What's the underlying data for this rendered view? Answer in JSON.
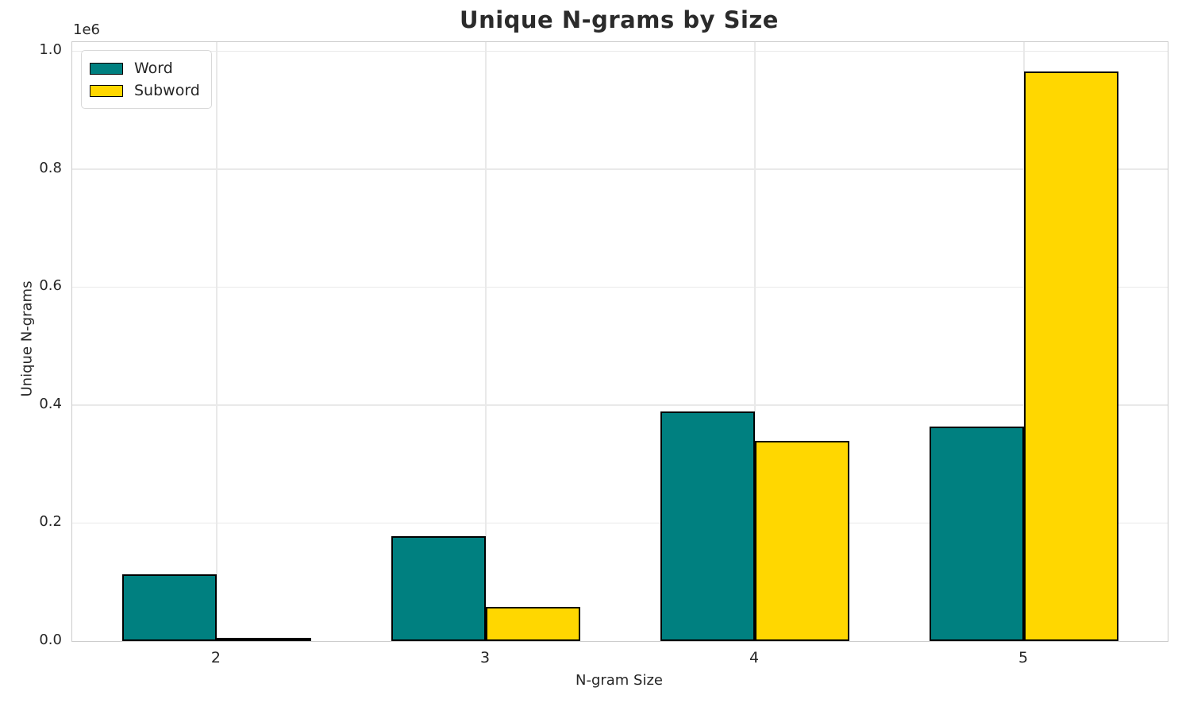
{
  "chart_data": {
    "type": "bar",
    "title": "Unique N-grams by Size",
    "xlabel": "N-gram Size",
    "ylabel": "Unique N-grams",
    "offset_text": "1e6",
    "categories": [
      2,
      3,
      4,
      5
    ],
    "xtick_labels": [
      "2",
      "3",
      "4",
      "5"
    ],
    "series": [
      {
        "name": "Word",
        "color": "#008080",
        "values": [
          113000,
          178000,
          389000,
          363000
        ]
      },
      {
        "name": "Subword",
        "color": "#FFD700",
        "values": [
          6000,
          58000,
          340000,
          966000
        ]
      }
    ],
    "bar_edge_color": "#000000",
    "bar_width": 0.35,
    "xlim": [
      1.4632,
      5.5339
    ],
    "ylim": [
      0,
      1015400
    ],
    "yticks": [
      0,
      200000,
      400000,
      600000,
      800000,
      1000000
    ],
    "ytick_labels": [
      "0.0",
      "0.2",
      "0.4",
      "0.6",
      "0.8",
      "1.0"
    ],
    "grid": true,
    "legend_position": "upper left",
    "colors": {
      "grid": "#e9e9e9",
      "spine": "#cccccc",
      "text": "#262626",
      "title": "#2b2b2b",
      "background": "#ffffff"
    }
  }
}
